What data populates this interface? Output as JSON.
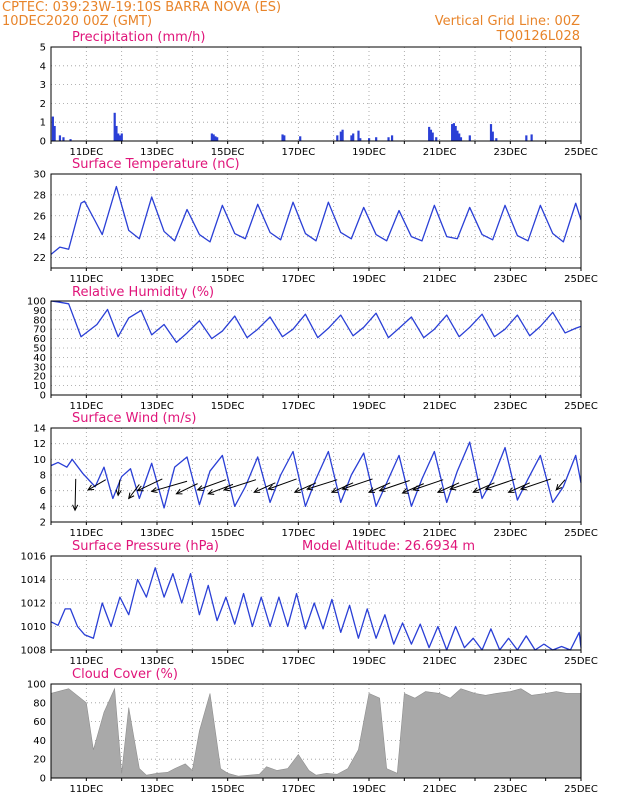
{
  "header": {
    "line1_left": "CPTEC:   039:23W-19:10S   BARRA NOVA (ES)",
    "line2_left": "10DEC2020 00Z (GMT)",
    "line1_right": "Vertical Grid Line: 00Z",
    "line2_right": "TQ0126L028"
  },
  "x_ticks": [
    "11DEC",
    "13DEC",
    "15DEC",
    "17DEC",
    "19DEC",
    "21DEC",
    "23DEC",
    "25DEC"
  ],
  "colors": {
    "line": "#2a3fd6",
    "bars": "#2a3fd6",
    "cloud": "#a9a9a9",
    "title": "#e0157a",
    "header": "#e8842a"
  },
  "chart_data": [
    {
      "type": "bar",
      "title": "Precipitation (mm/h)",
      "ylim": [
        0,
        5
      ],
      "yticks": [
        0,
        1,
        2,
        3,
        4,
        5
      ],
      "x_unit": "days since 10DEC2020 00Z",
      "x": [
        0.05,
        0.1,
        0.25,
        0.35,
        0.55,
        1.8,
        1.85,
        1.9,
        1.95,
        2.0,
        4.55,
        4.6,
        4.65,
        4.7,
        6.55,
        6.6,
        7.05,
        8.1,
        8.2,
        8.25,
        8.5,
        8.55,
        8.7,
        8.75,
        9.0,
        9.2,
        9.55,
        9.65,
        10.7,
        10.75,
        10.8,
        10.9,
        11.35,
        11.4,
        11.45,
        11.5,
        11.55,
        11.6,
        11.85,
        12.45,
        12.5,
        12.6,
        13.45,
        13.6
      ],
      "values": [
        1.3,
        0.8,
        0.3,
        0.2,
        0.1,
        1.5,
        0.8,
        0.4,
        0.3,
        0.4,
        0.4,
        0.35,
        0.25,
        0.2,
        0.35,
        0.3,
        0.25,
        0.3,
        0.5,
        0.6,
        0.3,
        0.4,
        0.55,
        0.15,
        0.15,
        0.2,
        0.2,
        0.3,
        0.75,
        0.6,
        0.45,
        0.2,
        0.9,
        0.95,
        0.8,
        0.55,
        0.4,
        0.2,
        0.3,
        0.9,
        0.5,
        0.15,
        0.3,
        0.35
      ]
    },
    {
      "type": "line",
      "title": "Surface Temperature (nC)",
      "ylim": [
        21,
        30
      ],
      "yticks": [
        22,
        24,
        26,
        28,
        30
      ],
      "x_unit": "days since 10DEC2020 00Z",
      "x": [
        0,
        0.25,
        0.5,
        0.85,
        0.95,
        1.25,
        1.45,
        1.85,
        2.2,
        2.5,
        2.85,
        3.2,
        3.5,
        3.85,
        4.2,
        4.5,
        4.85,
        5.2,
        5.5,
        5.85,
        6.2,
        6.5,
        6.85,
        7.2,
        7.5,
        7.85,
        8.2,
        8.5,
        8.85,
        9.2,
        9.5,
        9.85,
        10.2,
        10.5,
        10.85,
        11.2,
        11.5,
        11.85,
        12.2,
        12.5,
        12.85,
        13.2,
        13.5,
        13.85,
        14.2,
        14.5,
        14.85,
        15
      ],
      "values": [
        22.3,
        23.0,
        22.8,
        27.2,
        27.4,
        25.5,
        24.2,
        28.8,
        24.6,
        23.8,
        27.8,
        24.5,
        23.6,
        26.6,
        24.2,
        23.5,
        27.0,
        24.3,
        23.8,
        27.1,
        24.4,
        23.7,
        27.3,
        24.3,
        23.6,
        27.3,
        24.4,
        23.8,
        26.8,
        24.2,
        23.6,
        26.5,
        24.0,
        23.6,
        27.0,
        24.0,
        23.8,
        26.8,
        24.2,
        23.7,
        27.0,
        24.1,
        23.6,
        27.0,
        24.3,
        23.5,
        27.2,
        25.6
      ]
    },
    {
      "type": "line",
      "title": "Relative Humidity (%)",
      "ylim": [
        0,
        100
      ],
      "yticks": [
        0,
        10,
        20,
        30,
        40,
        50,
        60,
        70,
        80,
        90,
        100
      ],
      "x_unit": "days since 10DEC2020 00Z",
      "x": [
        0,
        0.2,
        0.5,
        0.85,
        1.3,
        1.6,
        1.9,
        2.2,
        2.55,
        2.85,
        3.2,
        3.55,
        3.85,
        4.2,
        4.55,
        4.85,
        5.2,
        5.55,
        5.85,
        6.2,
        6.55,
        6.85,
        7.2,
        7.55,
        7.85,
        8.2,
        8.55,
        8.85,
        9.2,
        9.55,
        9.85,
        10.2,
        10.55,
        10.85,
        11.2,
        11.55,
        11.85,
        12.2,
        12.55,
        12.85,
        13.2,
        13.55,
        13.85,
        14.2,
        14.55,
        14.85,
        15
      ],
      "values": [
        100,
        99,
        97,
        62,
        75,
        91,
        62,
        82,
        90,
        64,
        75,
        56,
        66,
        79,
        60,
        68,
        84,
        61,
        70,
        83,
        62,
        70,
        86,
        61,
        71,
        85,
        63,
        72,
        87,
        61,
        71,
        83,
        61,
        70,
        85,
        62,
        72,
        86,
        62,
        70,
        85,
        63,
        73,
        88,
        66,
        71,
        73
      ]
    },
    {
      "type": "line",
      "title": "Surface Wind (m/s)",
      "ylim": [
        2,
        14
      ],
      "yticks": [
        2,
        4,
        6,
        8,
        10,
        12,
        14
      ],
      "x_unit": "days since 10DEC2020 00Z",
      "x": [
        0,
        0.2,
        0.45,
        0.6,
        0.9,
        1.25,
        1.5,
        1.75,
        2.0,
        2.25,
        2.5,
        2.85,
        3.2,
        3.5,
        3.85,
        4.2,
        4.5,
        4.85,
        5.2,
        5.5,
        5.85,
        6.2,
        6.5,
        6.85,
        7.2,
        7.5,
        7.85,
        8.2,
        8.5,
        8.85,
        9.2,
        9.5,
        9.85,
        10.2,
        10.5,
        10.85,
        11.2,
        11.5,
        11.85,
        12.2,
        12.5,
        12.85,
        13.2,
        13.5,
        13.85,
        14.2,
        14.5,
        14.85,
        15
      ],
      "values": [
        9.2,
        9.6,
        9.0,
        10.0,
        8.2,
        6.5,
        9.0,
        5.0,
        7.8,
        8.8,
        5.0,
        9.5,
        3.8,
        9.0,
        10.3,
        4.2,
        8.5,
        10.5,
        4.0,
        6.5,
        10.3,
        4.5,
        8.0,
        11.0,
        4.0,
        7.5,
        11.0,
        4.5,
        8.0,
        10.8,
        4.0,
        7.0,
        10.5,
        4.0,
        7.5,
        11.0,
        4.5,
        8.5,
        12.2,
        5.0,
        7.5,
        11.5,
        4.8,
        7.5,
        10.5,
        4.5,
        6.5,
        10.5,
        7.0
      ],
      "arrows": {
        "x": [
          0.7,
          1.55,
          1.95,
          2.5,
          3.15,
          3.85,
          4.15,
          4.95,
          5.15,
          5.8,
          6.35,
          6.95,
          7.5,
          8.1,
          8.55,
          9.1,
          9.6,
          10.15,
          10.55,
          11.1,
          11.55,
          12.15,
          12.55,
          13.15,
          13.55,
          14.15,
          14.55
        ],
        "base_y": [
          7.5,
          7.4,
          7.4,
          6.8,
          7.5,
          7.2,
          6.9,
          7.4,
          6.8,
          7.4,
          7.0,
          7.5,
          7.0,
          7.4,
          7.0,
          7.5,
          7.0,
          7.3,
          6.9,
          7.4,
          7.0,
          7.5,
          7.0,
          7.5,
          7.0,
          7.5,
          7.4
        ],
        "dx": [
          -0.02,
          -0.5,
          -0.05,
          -0.3,
          -0.7,
          -1.0,
          -0.6,
          -0.8,
          -0.7,
          -0.9,
          -0.6,
          -0.8,
          -0.6,
          -0.85,
          -0.6,
          -0.85,
          -0.6,
          -0.85,
          -0.6,
          -0.85,
          -0.6,
          -0.85,
          -0.6,
          -0.85,
          -0.6,
          -0.85,
          -0.25
        ],
        "dy": [
          -4.0,
          -1.3,
          -2.0,
          -1.8,
          -1.5,
          -1.3,
          -1.3,
          -1.3,
          -1.2,
          -1.3,
          -1.2,
          -1.3,
          -1.2,
          -1.2,
          -1.2,
          -1.3,
          -1.2,
          -1.3,
          -1.2,
          -1.3,
          -1.2,
          -1.3,
          -1.2,
          -1.3,
          -1.2,
          -1.3,
          -1.3
        ]
      }
    },
    {
      "type": "line",
      "title": "Surface Pressure (hPa)",
      "annotation": "Model Altitude: 26.6934  m",
      "ylim": [
        1008,
        1016
      ],
      "yticks": [
        1008,
        1010,
        1012,
        1014,
        1016
      ],
      "x_unit": "days since 10DEC2020 00Z",
      "x": [
        0,
        0.2,
        0.4,
        0.55,
        0.75,
        0.95,
        1.2,
        1.45,
        1.7,
        1.95,
        2.2,
        2.45,
        2.7,
        2.95,
        3.2,
        3.45,
        3.7,
        3.95,
        4.2,
        4.45,
        4.7,
        4.95,
        5.2,
        5.45,
        5.7,
        5.95,
        6.2,
        6.45,
        6.7,
        6.95,
        7.2,
        7.45,
        7.7,
        7.95,
        8.2,
        8.45,
        8.7,
        8.95,
        9.2,
        9.45,
        9.7,
        9.95,
        10.2,
        10.45,
        10.7,
        10.95,
        11.2,
        11.45,
        11.7,
        11.95,
        12.2,
        12.45,
        12.7,
        12.95,
        13.2,
        13.45,
        13.7,
        13.95,
        14.2,
        14.45,
        14.7,
        14.95,
        15
      ],
      "values": [
        1010.4,
        1010.1,
        1011.5,
        1011.5,
        1010.0,
        1009.3,
        1009.0,
        1012.0,
        1010.0,
        1012.5,
        1011.0,
        1014.0,
        1012.5,
        1015.0,
        1012.5,
        1014.5,
        1012.0,
        1014.5,
        1011.0,
        1013.5,
        1010.5,
        1012.5,
        1010.2,
        1012.8,
        1010.0,
        1012.5,
        1010.0,
        1012.5,
        1010.0,
        1012.8,
        1009.8,
        1012.0,
        1009.8,
        1012.3,
        1009.5,
        1011.8,
        1009.0,
        1011.5,
        1009.0,
        1011.0,
        1008.5,
        1010.3,
        1008.5,
        1010.2,
        1008.2,
        1010.0,
        1008.0,
        1010.0,
        1008.2,
        1009.0,
        1008.0,
        1009.8,
        1008.0,
        1009.0,
        1008.0,
        1009.2,
        1008.0,
        1008.5,
        1008.0,
        1008.3,
        1008.0,
        1009.5,
        1008.2
      ]
    },
    {
      "type": "area",
      "title": "Cloud Cover (%)",
      "ylim": [
        0,
        100
      ],
      "yticks": [
        0,
        20,
        40,
        60,
        80,
        100
      ],
      "x_unit": "days since 10DEC2020 00Z",
      "x": [
        0,
        0.5,
        1.0,
        1.2,
        1.5,
        1.8,
        2.0,
        2.2,
        2.5,
        2.7,
        3.0,
        3.3,
        3.5,
        3.8,
        4.0,
        4.2,
        4.5,
        4.8,
        5.0,
        5.3,
        5.6,
        5.9,
        6.1,
        6.4,
        6.7,
        7.0,
        7.3,
        7.5,
        7.8,
        8.1,
        8.4,
        8.7,
        9.0,
        9.3,
        9.5,
        9.8,
        10.0,
        10.3,
        10.6,
        11.0,
        11.3,
        11.6,
        12.0,
        12.3,
        12.6,
        13.0,
        13.3,
        13.6,
        14.0,
        14.3,
        14.6,
        15.0
      ],
      "values": [
        90,
        95,
        80,
        30,
        70,
        95,
        5,
        75,
        10,
        3,
        5,
        6,
        10,
        15,
        8,
        50,
        90,
        10,
        5,
        2,
        3,
        4,
        12,
        8,
        10,
        25,
        8,
        3,
        5,
        4,
        10,
        30,
        90,
        85,
        10,
        5,
        90,
        85,
        92,
        90,
        85,
        95,
        90,
        88,
        90,
        92,
        95,
        88,
        90,
        92,
        90,
        90
      ]
    }
  ]
}
